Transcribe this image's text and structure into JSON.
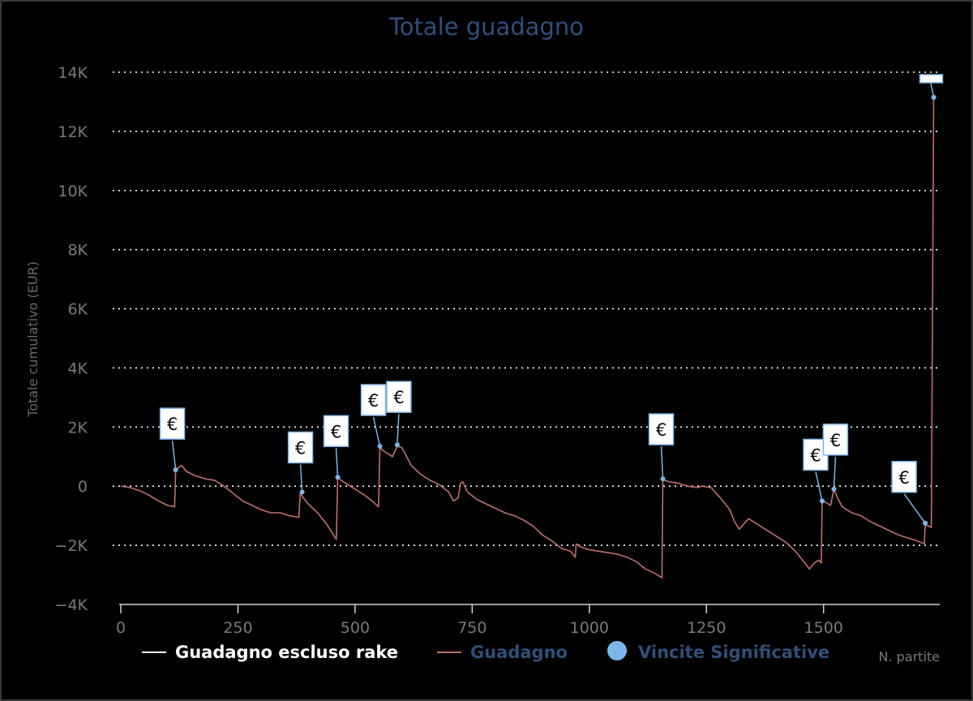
{
  "chart_data": {
    "type": "line",
    "title": "Totale guadagno",
    "xlabel": "N. partite",
    "ylabel": "Totale cumulativo (EUR)",
    "xlim": [
      0,
      1750
    ],
    "ylim": [
      -4000,
      14000
    ],
    "x_ticks": [
      0,
      250,
      500,
      750,
      1000,
      1250,
      1500
    ],
    "x_tick_labels": [
      "0",
      "250",
      "500",
      "750",
      "1000",
      "1250",
      "1500"
    ],
    "y_ticks": [
      -4000,
      -2000,
      0,
      2000,
      4000,
      6000,
      8000,
      10000,
      12000,
      14000
    ],
    "y_tick_labels": [
      "−4K",
      "−2K",
      "0",
      "2K",
      "4K",
      "6K",
      "8K",
      "10K",
      "12K",
      "14K"
    ],
    "grid": "horizontal dotted",
    "legend_position": "bottom",
    "colors": {
      "background": "#000000",
      "guadagno": "#c0706a",
      "escluso": "#ffffff",
      "vincite": "#7cb5ec",
      "title": "#2f4f7a"
    },
    "series": [
      {
        "name": "Guadagno escluso rake",
        "color": "#ffffff",
        "x": [],
        "y": []
      },
      {
        "name": "Guadagno",
        "color": "#c0706a",
        "x": [
          0,
          20,
          40,
          60,
          80,
          100,
          115,
          117,
          125,
          130,
          140,
          160,
          180,
          200,
          220,
          240,
          260,
          280,
          300,
          320,
          340,
          360,
          380,
          383,
          390,
          400,
          420,
          440,
          460,
          463,
          470,
          480,
          490,
          500,
          520,
          540,
          550,
          553,
          560,
          570,
          580,
          590,
          600,
          610,
          620,
          640,
          660,
          680,
          700,
          710,
          720,
          725,
          730,
          740,
          760,
          780,
          800,
          820,
          840,
          860,
          880,
          900,
          920,
          940,
          960,
          970,
          972,
          980,
          1000,
          1020,
          1040,
          1060,
          1080,
          1100,
          1120,
          1140,
          1155,
          1157,
          1160,
          1170,
          1190,
          1210,
          1230,
          1240,
          1260,
          1280,
          1300,
          1310,
          1320,
          1340,
          1360,
          1380,
          1400,
          1420,
          1440,
          1460,
          1470,
          1480,
          1490,
          1495,
          1497,
          1505,
          1515,
          1522,
          1530,
          1540,
          1560,
          1580,
          1600,
          1620,
          1640,
          1660,
          1680,
          1700,
          1715,
          1717,
          1725,
          1730,
          1735,
          1740
        ],
        "y": [
          0,
          -50,
          -150,
          -300,
          -500,
          -650,
          -700,
          550,
          650,
          700,
          500,
          350,
          250,
          200,
          0,
          -250,
          -500,
          -650,
          -800,
          -900,
          -900,
          -1000,
          -1050,
          -250,
          -400,
          -600,
          -900,
          -1300,
          -1800,
          300,
          200,
          100,
          0,
          -100,
          -300,
          -550,
          -700,
          1300,
          1200,
          1100,
          1000,
          1350,
          1300,
          1000,
          700,
          400,
          200,
          50,
          -200,
          -500,
          -400,
          100,
          150,
          -200,
          -450,
          -600,
          -750,
          -900,
          -1000,
          -1150,
          -1350,
          -1650,
          -1850,
          -2100,
          -2200,
          -2400,
          -1950,
          -2050,
          -2150,
          -2200,
          -2250,
          -2300,
          -2400,
          -2550,
          -2800,
          -2950,
          -3100,
          250,
          200,
          150,
          100,
          0,
          -50,
          0,
          -50,
          -400,
          -800,
          -1200,
          -1450,
          -1100,
          -1300,
          -1500,
          -1700,
          -1900,
          -2200,
          -2600,
          -2800,
          -2600,
          -2500,
          -2600,
          -500,
          -550,
          -650,
          -100,
          -400,
          -700,
          -900,
          -1000,
          -1200,
          -1350,
          -1500,
          -1650,
          -1750,
          -1850,
          -1950,
          -1300,
          -1350,
          -1400,
          13150,
          13200
        ]
      }
    ],
    "vincite_significative": [
      {
        "x": 117,
        "y": 550,
        "label": "€"
      },
      {
        "x": 387,
        "y": -200,
        "label": "€"
      },
      {
        "x": 463,
        "y": 300,
        "label": "€"
      },
      {
        "x": 553,
        "y": 1350,
        "label": "€"
      },
      {
        "x": 590,
        "y": 1400,
        "label": "€"
      },
      {
        "x": 1157,
        "y": 250,
        "label": "€"
      },
      {
        "x": 1497,
        "y": -500,
        "label": "€"
      },
      {
        "x": 1522,
        "y": -100,
        "label": "€"
      },
      {
        "x": 1717,
        "y": -1250,
        "label": "€"
      },
      {
        "x": 1735,
        "y": 13150,
        "label": ""
      }
    ]
  },
  "legend": [
    {
      "label": "Guadagno escluso rake",
      "color": "#ffffff"
    },
    {
      "label": "Guadagno",
      "color": "#2f4f7a"
    },
    {
      "label": "Vincite Significative",
      "color": "#2f4f7a"
    }
  ]
}
